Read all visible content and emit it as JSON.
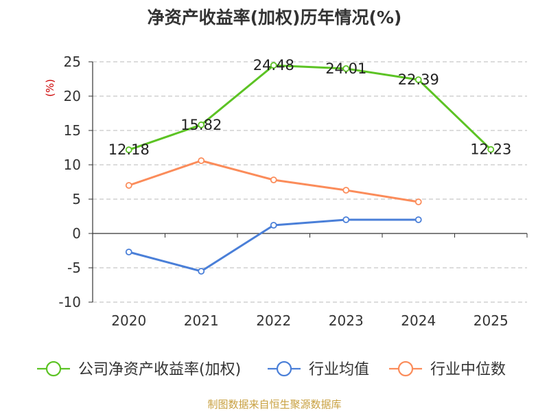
{
  "title": "净资产收益率(加权)历年情况(%)",
  "source": "制图数据来自恒生聚源数据库",
  "colors": {
    "company": "#5cc324",
    "industry_avg": "#4a7fd8",
    "industry_median": "#fb8c5a",
    "grid": "#c8c8c8",
    "axis": "#333333",
    "unit": "#cc0000"
  },
  "chart_data": {
    "type": "line",
    "x": [
      "2020",
      "2021",
      "2022",
      "2023",
      "2024",
      "2025"
    ],
    "ylabel": "(%)",
    "ylim": [
      -10,
      25
    ],
    "yticks": [
      25,
      20,
      15,
      10,
      5,
      0,
      -5,
      -10
    ],
    "grid": true,
    "legend_position": "bottom",
    "series": [
      {
        "name": "公司净资产收益率(加权)",
        "key": "company",
        "values": [
          12.18,
          15.82,
          24.48,
          24.01,
          22.39,
          12.23
        ],
        "labels": [
          "12.18",
          "15.82",
          "24.48",
          "24.01",
          "22.39",
          "12.23"
        ]
      },
      {
        "name": "行业均值",
        "key": "industry_avg",
        "values": [
          -2.7,
          -5.5,
          1.2,
          2.0,
          2.0,
          null
        ]
      },
      {
        "name": "行业中位数",
        "key": "industry_median",
        "values": [
          7.0,
          10.6,
          7.8,
          6.3,
          4.6,
          null
        ]
      }
    ]
  }
}
